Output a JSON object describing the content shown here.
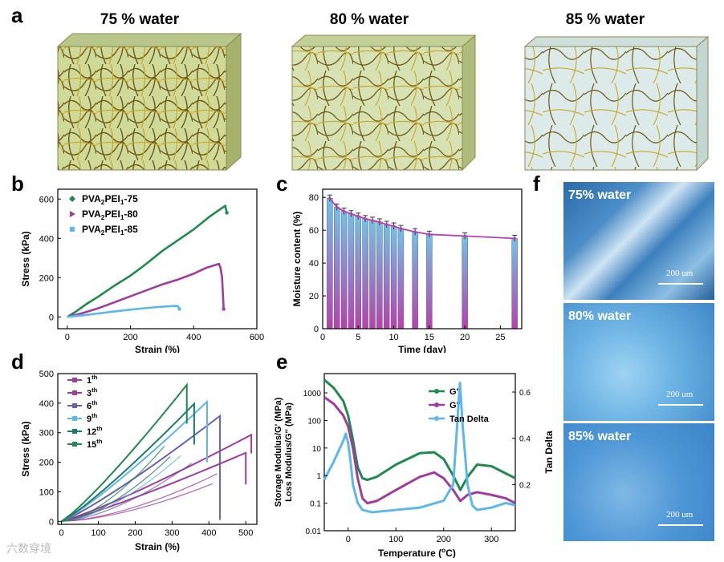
{
  "panel_labels": {
    "a": "a",
    "b": "b",
    "c": "c",
    "d": "d",
    "e": "e",
    "f": "f"
  },
  "cubes": [
    {
      "title": "75 % water",
      "density": "high"
    },
    {
      "title": "80 % water",
      "density": "medium"
    },
    {
      "title": "85 % water",
      "density": "low"
    }
  ],
  "chart_data": [
    {
      "id": "b",
      "type": "line",
      "title": "",
      "xlabel": "Strain (%)",
      "ylabel": "Stress (kPa)",
      "xlim": [
        -30,
        600
      ],
      "ylim": [
        -60,
        650
      ],
      "xticks": [
        0,
        200,
        400,
        600
      ],
      "yticks": [
        0,
        200,
        400,
        600
      ],
      "series": [
        {
          "name": "PVA2PEI1-75",
          "name_main": "PVA",
          "sub1": "2",
          "name_mid": "PEI",
          "sub2": "1",
          "suffix": "-75",
          "color": "#1f8a4c",
          "marker": "diamond",
          "x": [
            0,
            30,
            60,
            100,
            150,
            200,
            250,
            300,
            350,
            400,
            450,
            490,
            500,
            505
          ],
          "y": [
            0,
            30,
            65,
            105,
            160,
            210,
            270,
            335,
            390,
            445,
            510,
            555,
            565,
            530
          ]
        },
        {
          "name": "PVA2PEI1-80",
          "name_main": "PVA",
          "sub1": "2",
          "name_mid": "PEI",
          "sub2": "1",
          "suffix": "-80",
          "color": "#a03c9c",
          "marker": "triangle",
          "x": [
            0,
            50,
            100,
            150,
            200,
            250,
            300,
            350,
            400,
            440,
            470,
            480,
            485,
            490,
            495
          ],
          "y": [
            0,
            20,
            45,
            75,
            105,
            135,
            165,
            190,
            220,
            250,
            265,
            270,
            250,
            200,
            40
          ]
        },
        {
          "name": "PVA2PEI1-85",
          "name_main": "PVA",
          "sub1": "2",
          "name_mid": "PEI",
          "sub2": "1",
          "suffix": "-85",
          "color": "#5bb8e8",
          "marker": "square",
          "x": [
            0,
            50,
            100,
            150,
            200,
            250,
            300,
            340,
            350,
            355
          ],
          "y": [
            0,
            8,
            18,
            28,
            37,
            45,
            52,
            56,
            55,
            40
          ]
        }
      ]
    },
    {
      "id": "c",
      "type": "bar+line",
      "xlabel": "Time (day)",
      "ylabel": "Moisture content (%)",
      "xlim": [
        0,
        28
      ],
      "ylim": [
        0,
        85
      ],
      "xticks": [
        0,
        5,
        10,
        15,
        20,
        25
      ],
      "yticks": [
        0,
        20,
        40,
        60,
        80
      ],
      "x": [
        1,
        2,
        3,
        4,
        5,
        6,
        7,
        8,
        9,
        10,
        11,
        13,
        15,
        20,
        27
      ],
      "values": [
        79.5,
        74,
        71.5,
        70,
        68.5,
        67,
        66,
        65,
        63.5,
        62.5,
        61,
        59,
        57.5,
        56.5,
        55
      ],
      "bar_gradient": [
        "#6ec3ea",
        "#b83fb0"
      ],
      "line_color": "#b83fb0"
    },
    {
      "id": "d",
      "type": "line",
      "xlabel": "Strain (%)",
      "ylabel": "Stress (kPa)",
      "xlim": [
        -10,
        530
      ],
      "ylim": [
        -10,
        500
      ],
      "xticks": [
        0,
        100,
        200,
        300,
        400,
        500
      ],
      "yticks": [
        0,
        100,
        200,
        300,
        400,
        500
      ],
      "series": [
        {
          "name": "1th",
          "num": "1",
          "sup": "th",
          "color": "#a03c9c",
          "peak_x": 500,
          "peak_y": 232,
          "drop_y": 125
        },
        {
          "name": "3th",
          "num": "3",
          "sup": "th",
          "color": "#a03c9c",
          "peak_x": 515,
          "peak_y": 293,
          "drop_y": 230
        },
        {
          "name": "6th",
          "num": "6",
          "sup": "th",
          "color": "#6960b8",
          "peak_x": 430,
          "peak_y": 357,
          "drop_y": 5
        },
        {
          "name": "9th",
          "num": "9",
          "sup": "th",
          "color": "#5bb8e8",
          "peak_x": 395,
          "peak_y": 405,
          "drop_y": 200
        },
        {
          "name": "12th",
          "num": "12",
          "sup": "th",
          "color": "#1f7c6a",
          "peak_x": 360,
          "peak_y": 398,
          "drop_y": 260
        },
        {
          "name": "15th",
          "num": "15",
          "sup": "th",
          "color": "#1f8a4c",
          "peak_x": 340,
          "peak_y": 462,
          "drop_y": 330
        }
      ]
    },
    {
      "id": "e",
      "type": "line",
      "xlabel": "Temperature (°C)",
      "xlabel_main": "Temperature (",
      "xlabel_sup": "o",
      "xlabel_tail": "C)",
      "ylabel_left": "Storage Modulus/G' (MPa)",
      "ylabel_left2": "Loss Modulus/G'' (MPa)",
      "ylabel_right": "Tan Delta",
      "xlim": [
        -50,
        350
      ],
      "xticks": [
        0,
        100,
        200,
        300
      ],
      "yticks_left": [
        "0.01",
        "0.1",
        "1",
        "10",
        "100",
        "1000"
      ],
      "yticks_right": [
        "0.2",
        "0.4",
        "0.6"
      ],
      "series": [
        {
          "name": "G'",
          "color": "#1f8a4c",
          "axis": "left",
          "x": [
            -50,
            -30,
            -10,
            0,
            10,
            20,
            30,
            40,
            60,
            100,
            150,
            180,
            200,
            220,
            235,
            250,
            270,
            300,
            330,
            350
          ],
          "y": [
            3000,
            1500,
            500,
            150,
            20,
            2,
            0.8,
            0.7,
            0.9,
            2.5,
            6.5,
            7,
            4,
            1,
            0.3,
            0.9,
            2.5,
            2.2,
            1.2,
            0.8
          ]
        },
        {
          "name": "G''",
          "color": "#a03c9c",
          "axis": "left",
          "x": [
            -50,
            -30,
            -10,
            0,
            10,
            20,
            30,
            40,
            60,
            100,
            150,
            180,
            200,
            220,
            235,
            250,
            270,
            300,
            330,
            350
          ],
          "y": [
            700,
            400,
            150,
            60,
            10,
            0.8,
            0.15,
            0.1,
            0.12,
            0.3,
            0.9,
            1.3,
            0.8,
            0.3,
            0.12,
            0.2,
            0.25,
            0.2,
            0.15,
            0.1
          ]
        },
        {
          "name": "Tan Delta",
          "color": "#5bb8e8",
          "axis": "right",
          "x": [
            -50,
            -30,
            -10,
            -5,
            0,
            5,
            10,
            20,
            30,
            50,
            100,
            150,
            200,
            220,
            228,
            234,
            240,
            250,
            260,
            270,
            300,
            330,
            350
          ],
          "y": [
            0.22,
            0.3,
            0.39,
            0.42,
            0.38,
            0.3,
            0.2,
            0.12,
            0.09,
            0.08,
            0.09,
            0.1,
            0.13,
            0.2,
            0.45,
            0.64,
            0.45,
            0.2,
            0.11,
            0.09,
            0.1,
            0.12,
            0.11
          ]
        }
      ]
    }
  ],
  "photos": [
    {
      "caption": "75% water",
      "scale": "200 um"
    },
    {
      "caption": "80% water",
      "scale": "200 um"
    },
    {
      "caption": "85% water",
      "scale": "200 um"
    }
  ],
  "watermark": "六数穿境"
}
